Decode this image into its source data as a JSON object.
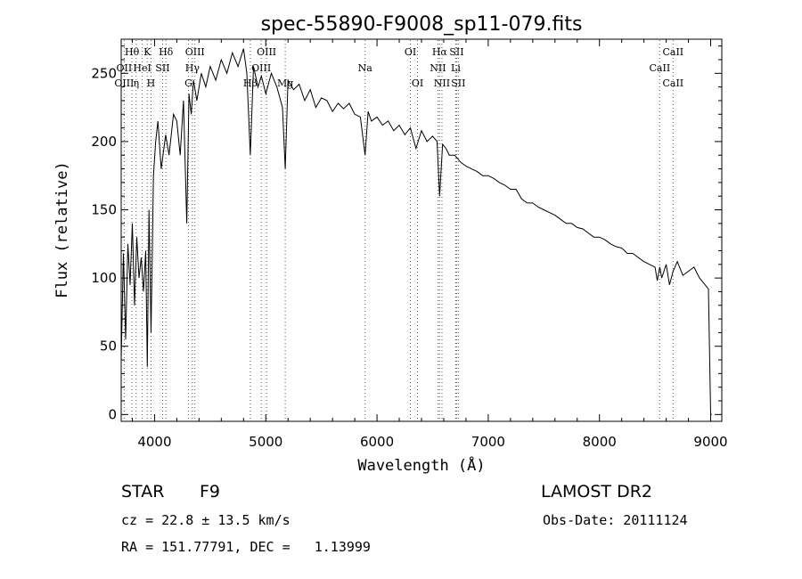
{
  "chart_data": {
    "type": "line",
    "title": "spec-55890-F9008_sp11-079.fits",
    "xlabel": "Wavelength (Å)",
    "ylabel": "Flux (relative)",
    "xlim": [
      3700,
      9100
    ],
    "ylim": [
      -5,
      275
    ],
    "x_ticks": [
      4000,
      5000,
      6000,
      7000,
      8000,
      9000
    ],
    "y_ticks": [
      0,
      50,
      100,
      150,
      200,
      250
    ],
    "grid": false,
    "line_color": "#000000",
    "marker_color": "#d62020",
    "series": [
      {
        "x": [
          3700,
          3720,
          3740,
          3760,
          3780,
          3800,
          3820,
          3840,
          3860,
          3880,
          3900,
          3920,
          3935,
          3950,
          3968,
          3990,
          4010,
          4030,
          4060,
          4100,
          4130,
          4170,
          4200,
          4230,
          4260,
          4290,
          4310,
          4330,
          4350,
          4380,
          4420,
          4460,
          4500,
          4550,
          4600,
          4650,
          4700,
          4750,
          4800,
          4830,
          4861,
          4890,
          4930,
          4960,
          5000,
          5050,
          5100,
          5150,
          5175,
          5200,
          5250,
          5300,
          5350,
          5400,
          5450,
          5500,
          5550,
          5600,
          5650,
          5700,
          5750,
          5800,
          5850,
          5893,
          5920,
          5950,
          6000,
          6050,
          6100,
          6150,
          6200,
          6250,
          6300,
          6350,
          6400,
          6450,
          6500,
          6540,
          6563,
          6590,
          6620,
          6650,
          6700,
          6750,
          6800,
          6850,
          6900,
          6950,
          7000,
          7050,
          7100,
          7150,
          7200,
          7250,
          7300,
          7350,
          7400,
          7450,
          7500,
          7550,
          7600,
          7650,
          7700,
          7750,
          7800,
          7850,
          7900,
          7950,
          8000,
          8050,
          8100,
          8150,
          8200,
          8250,
          8300,
          8350,
          8400,
          8450,
          8500,
          8520,
          8542,
          8560,
          8600,
          8630,
          8662,
          8700,
          8750,
          8800,
          8850,
          8900,
          8950,
          8980,
          9000,
          9010
        ],
        "y": [
          40,
          118,
          55,
          125,
          95,
          140,
          80,
          130,
          100,
          115,
          90,
          120,
          35,
          150,
          60,
          175,
          200,
          215,
          180,
          205,
          190,
          220,
          215,
          190,
          230,
          140,
          235,
          220,
          245,
          230,
          250,
          240,
          255,
          245,
          260,
          250,
          265,
          255,
          268,
          250,
          190,
          255,
          240,
          248,
          235,
          250,
          240,
          225,
          180,
          245,
          238,
          242,
          230,
          238,
          225,
          232,
          230,
          222,
          228,
          224,
          228,
          220,
          218,
          190,
          222,
          215,
          218,
          212,
          215,
          208,
          212,
          205,
          210,
          195,
          208,
          200,
          204,
          200,
          160,
          198,
          195,
          190,
          190,
          185,
          182,
          180,
          178,
          175,
          175,
          173,
          170,
          168,
          165,
          165,
          158,
          155,
          155,
          152,
          150,
          148,
          146,
          143,
          140,
          140,
          137,
          136,
          133,
          130,
          130,
          128,
          125,
          123,
          122,
          118,
          118,
          115,
          112,
          110,
          108,
          98,
          108,
          100,
          110,
          95,
          105,
          112,
          102,
          105,
          108,
          100,
          95,
          92,
          0,
          0
        ]
      }
    ],
    "lines_row1": [
      {
        "w": 3797,
        "label": "Hθ"
      },
      {
        "w": 3934,
        "label": "K"
      },
      {
        "w": 4102,
        "label": "Hδ"
      },
      {
        "w": 4363,
        "label": "OIII"
      },
      {
        "w": 5007,
        "label": "OIII"
      },
      {
        "w": 6300,
        "label": "OI"
      },
      {
        "w": 6563,
        "label": "Hα"
      },
      {
        "w": 6716,
        "label": "SII"
      },
      {
        "w": 8662,
        "label": "CaII"
      }
    ],
    "lines_row2": [
      {
        "w": 3727,
        "label": "OII"
      },
      {
        "w": 3889,
        "label": "HeI"
      },
      {
        "w": 4072,
        "label": "SII"
      },
      {
        "w": 4340,
        "label": "Hγ"
      },
      {
        "w": 4959,
        "label": "OIII"
      },
      {
        "w": 5893,
        "label": "Na"
      },
      {
        "w": 6548,
        "label": "NII"
      },
      {
        "w": 6708,
        "label": "Li"
      },
      {
        "w": 8542,
        "label": "CaII"
      }
    ],
    "lines_row3": [
      {
        "w": 3727,
        "label": "OIII"
      },
      {
        "w": 3835,
        "label": "η"
      },
      {
        "w": 3968,
        "label": "H"
      },
      {
        "w": 4305,
        "label": "G"
      },
      {
        "w": 4861,
        "label": "Hβ"
      },
      {
        "w": 5175,
        "label": "Mg"
      },
      {
        "w": 6364,
        "label": "OI"
      },
      {
        "w": 6584,
        "label": "NII"
      },
      {
        "w": 6731,
        "label": "SII"
      },
      {
        "w": 8662,
        "label": "CaII"
      }
    ]
  },
  "info": {
    "object_type": "STAR",
    "subclass": "F9",
    "survey": "LAMOST DR2",
    "redshift": "cz = 22.8 ± 13.5 km/s",
    "obs_date": "Obs-Date: 20111124",
    "coords": "RA = 151.77791, DEC =   1.13999"
  }
}
